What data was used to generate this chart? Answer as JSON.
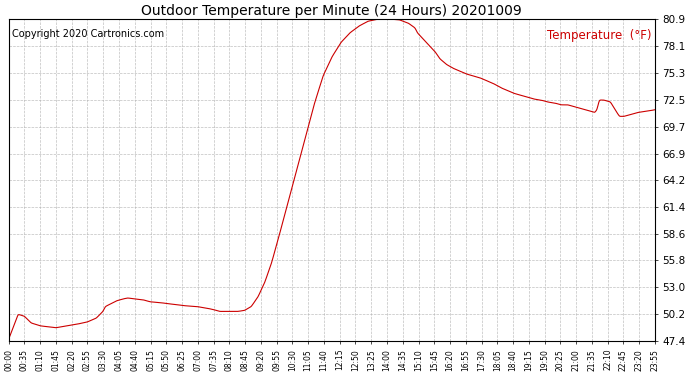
{
  "title": "Outdoor Temperature per Minute (24 Hours) 20201009",
  "copyright": "Copyright 2020 Cartronics.com",
  "legend_label": "Temperature  (°F)",
  "line_color": "#cc0000",
  "background_color": "#ffffff",
  "grid_color": "#b0b0b0",
  "yticks": [
    47.4,
    50.2,
    53.0,
    55.8,
    58.6,
    61.4,
    64.2,
    66.9,
    69.7,
    72.5,
    75.3,
    78.1,
    80.9
  ],
  "ylim": [
    47.4,
    80.9
  ],
  "xtick_labels": [
    "00:00",
    "00:35",
    "01:10",
    "01:45",
    "02:20",
    "02:55",
    "03:30",
    "04:05",
    "04:40",
    "05:15",
    "05:50",
    "06:25",
    "07:00",
    "07:35",
    "08:10",
    "08:45",
    "09:20",
    "09:55",
    "10:30",
    "11:05",
    "11:40",
    "12:15",
    "12:50",
    "13:25",
    "14:00",
    "14:35",
    "15:10",
    "15:45",
    "16:20",
    "16:55",
    "17:30",
    "18:05",
    "18:40",
    "19:15",
    "19:50",
    "20:25",
    "21:00",
    "21:35",
    "22:10",
    "22:45",
    "23:20",
    "23:55"
  ]
}
